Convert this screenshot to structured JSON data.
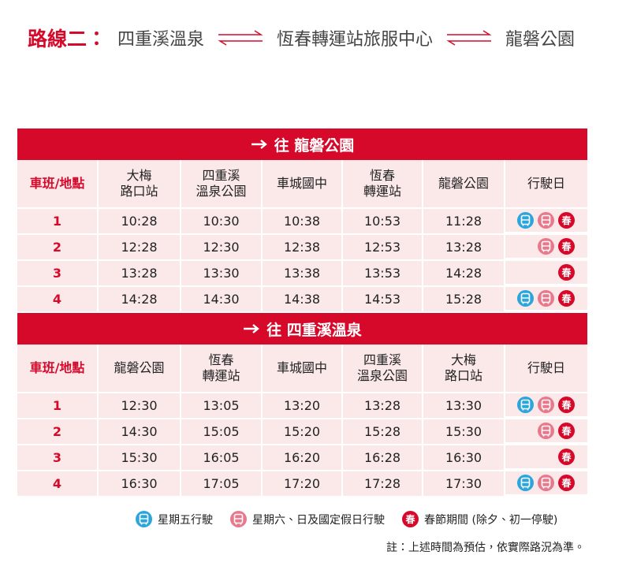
{
  "header": {
    "label": "路線二：",
    "stops": [
      "四重溪溫泉",
      "恆春轉運站旅服中心",
      "龍磐公園"
    ]
  },
  "tables": [
    {
      "title": "往 龍磐公園",
      "columns": [
        "車班/地點",
        "大梅\n路口站",
        "四重溪\n溫泉公園",
        "車城國中",
        "恆春\n轉運站",
        "龍磐公園",
        "行駛日"
      ],
      "rows": [
        {
          "no": "1",
          "times": [
            "10:28",
            "10:30",
            "10:38",
            "10:53",
            "11:28"
          ],
          "days": [
            true,
            true,
            true
          ]
        },
        {
          "no": "2",
          "times": [
            "12:28",
            "12:30",
            "12:38",
            "12:53",
            "13:28"
          ],
          "days": [
            false,
            true,
            true
          ]
        },
        {
          "no": "3",
          "times": [
            "13:28",
            "13:30",
            "13:38",
            "13:53",
            "14:28"
          ],
          "days": [
            false,
            false,
            true
          ]
        },
        {
          "no": "4",
          "times": [
            "14:28",
            "14:30",
            "14:38",
            "14:53",
            "15:28"
          ],
          "days": [
            true,
            true,
            true
          ]
        }
      ]
    },
    {
      "title": "往 四重溪溫泉",
      "columns": [
        "車班/地點",
        "龍磐公園",
        "恆春\n轉運站",
        "車城國中",
        "四重溪\n溫泉公園",
        "大梅\n路口站",
        "行駛日"
      ],
      "rows": [
        {
          "no": "1",
          "times": [
            "12:30",
            "13:05",
            "13:20",
            "13:28",
            "13:30"
          ],
          "days": [
            true,
            true,
            true
          ]
        },
        {
          "no": "2",
          "times": [
            "14:30",
            "15:05",
            "15:20",
            "15:28",
            "15:30"
          ],
          "days": [
            false,
            true,
            true
          ]
        },
        {
          "no": "3",
          "times": [
            "15:30",
            "16:05",
            "16:20",
            "16:28",
            "16:30"
          ],
          "days": [
            false,
            false,
            true
          ]
        },
        {
          "no": "4",
          "times": [
            "16:30",
            "17:05",
            "17:20",
            "17:28",
            "17:30"
          ],
          "days": [
            true,
            true,
            true
          ]
        }
      ]
    }
  ],
  "legend": [
    {
      "text": "星期五行駛",
      "color": "#2aa6dd"
    },
    {
      "text": "星期六、日及國定假日行駛",
      "color": "#e8798c"
    },
    {
      "text": "春節期間 (除夕、初一停駛)",
      "color": "#d6092b",
      "icon": "春"
    }
  ],
  "note": "註：上述時間為預估，依實際路況為準。"
}
